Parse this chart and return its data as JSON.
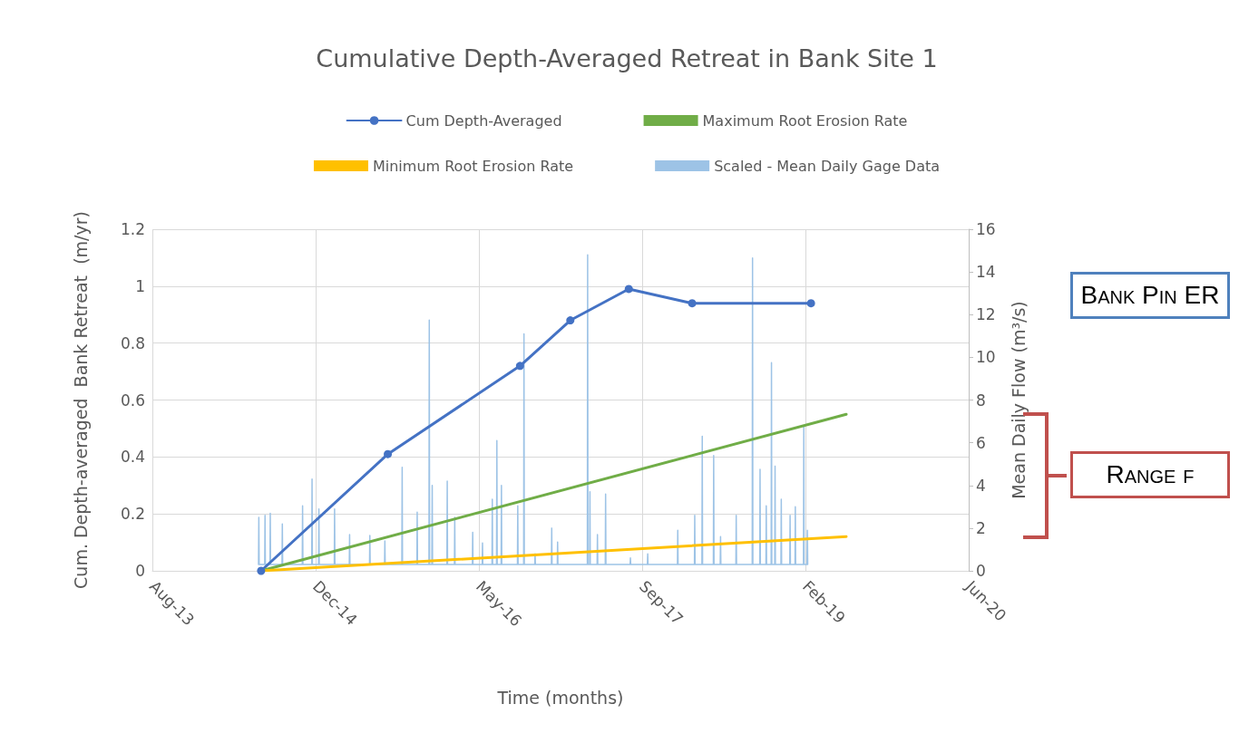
{
  "chart_data": {
    "type": "line",
    "title": "Cumulative Depth-Averaged Retreat in Bank Site 1",
    "xlabel": "Time (months)",
    "ylabel": "Cum. Depth-averaged  Bank Retreat  (m/yr)",
    "y2label": "Mean Daily Flow (m³/s)",
    "xlim": [
      "2013-08-14",
      "2020-06-18"
    ],
    "xticks": [
      {
        "value": "2013-08-14",
        "label": "Aug-13"
      },
      {
        "value": "2014-12-27",
        "label": "Dec-14"
      },
      {
        "value": "2016-05-10",
        "label": "May-16"
      },
      {
        "value": "2017-09-22",
        "label": "Sep-17"
      },
      {
        "value": "2019-02-04",
        "label": "Feb-19"
      },
      {
        "value": "2020-06-18",
        "label": "Jun-20"
      }
    ],
    "ylim": [
      0,
      1.2
    ],
    "yticks": [
      0,
      0.2,
      0.4,
      0.6,
      0.8,
      1,
      1.2
    ],
    "y2lim": [
      0,
      16
    ],
    "y2ticks": [
      0,
      2,
      4,
      6,
      8,
      10,
      12,
      14,
      16
    ],
    "grid": true,
    "legend": "top",
    "annotations": [
      "Bank Pin ER",
      "Range f"
    ],
    "series": [
      {
        "name": "Cum Depth-Averaged",
        "color": "#4472c4",
        "marker": "circle",
        "x": [
          "2014-07-13",
          "2015-08-05",
          "2016-09-13",
          "2017-02-14",
          "2017-08-12",
          "2018-02-22",
          "2019-02-21"
        ],
        "values": [
          0,
          0.41,
          0.72,
          0.88,
          0.99,
          0.94,
          0.94
        ]
      },
      {
        "name": "Maximum Root Erosion Rate",
        "color": "#70ad47",
        "marker": "none",
        "x": [
          "2014-07-13",
          "2019-06-09"
        ],
        "values": [
          0,
          0.55
        ]
      },
      {
        "name": "Minimum Root Erosion Rate",
        "color": "#ffc000",
        "marker": "none",
        "x": [
          "2014-07-13",
          "2019-06-09"
        ],
        "values": [
          0,
          0.12
        ]
      },
      {
        "name": "Scaled - Mean Daily Gage Data",
        "color": "#9dc3e6",
        "marker": "none",
        "axis": "y2",
        "x": [
          "2014-07-05",
          "2014-07-06",
          "2014-07-07",
          "2014-07-24",
          "2014-07-25",
          "2014-07-26",
          "2014-08-09",
          "2014-08-10",
          "2014-08-11",
          "2014-09-15",
          "2014-09-16",
          "2014-09-17",
          "2014-11-16",
          "2014-11-17",
          "2014-11-18",
          "2014-12-15",
          "2014-12-16",
          "2014-12-17",
          "2015-01-05",
          "2015-01-06",
          "2015-01-07",
          "2015-02-22",
          "2015-02-23",
          "2015-02-24",
          "2015-04-09",
          "2015-04-10",
          "2015-04-11",
          "2015-06-10",
          "2015-06-11",
          "2015-06-12",
          "2015-07-26",
          "2015-07-27",
          "2015-07-28",
          "2015-09-17",
          "2015-09-18",
          "2015-09-19",
          "2015-11-02",
          "2015-11-03",
          "2015-11-04",
          "2015-12-09",
          "2015-12-10",
          "2015-12-11",
          "2015-12-18",
          "2015-12-19",
          "2015-12-20",
          "2016-02-02",
          "2016-02-03",
          "2016-02-04",
          "2016-02-25",
          "2016-02-26",
          "2016-02-27",
          "2016-04-20",
          "2016-04-21",
          "2016-04-22",
          "2016-05-20",
          "2016-05-21",
          "2016-05-22",
          "2016-06-19",
          "2016-06-20",
          "2016-06-21",
          "2016-07-03",
          "2016-07-04",
          "2016-07-05",
          "2016-07-17",
          "2016-07-18",
          "2016-07-19",
          "2016-09-05",
          "2016-09-06",
          "2016-09-07",
          "2016-09-24",
          "2016-09-25",
          "2016-09-26",
          "2016-10-28",
          "2016-10-29",
          "2016-10-30",
          "2016-12-18",
          "2016-12-19",
          "2016-12-20",
          "2017-01-05",
          "2017-01-06",
          "2017-01-07",
          "2017-04-07",
          "2017-04-08",
          "2017-04-09",
          "2017-04-14",
          "2017-04-15",
          "2017-04-16",
          "2017-05-07",
          "2017-05-08",
          "2017-05-09",
          "2017-06-01",
          "2017-06-02",
          "2017-06-03",
          "2017-08-16",
          "2017-08-17",
          "2017-08-18",
          "2017-10-08",
          "2017-10-09",
          "2017-10-10",
          "2018-01-08",
          "2018-01-09",
          "2018-01-10",
          "2018-03-01",
          "2018-03-02",
          "2018-03-03",
          "2018-03-24",
          "2018-03-25",
          "2018-03-26",
          "2018-04-28",
          "2018-04-29",
          "2018-04-30",
          "2018-05-19",
          "2018-05-20",
          "2018-05-21",
          "2018-07-06",
          "2018-07-07",
          "2018-07-08",
          "2018-08-25",
          "2018-08-26",
          "2018-08-27",
          "2018-09-17",
          "2018-09-18",
          "2018-09-19",
          "2018-10-06",
          "2018-10-07",
          "2018-10-08",
          "2018-10-22",
          "2018-10-23",
          "2018-10-24",
          "2018-11-02",
          "2018-11-03",
          "2018-11-04",
          "2018-11-21",
          "2018-11-22",
          "2018-11-23",
          "2018-12-18",
          "2018-12-19",
          "2018-12-20",
          "2019-01-03",
          "2019-01-04",
          "2019-01-05",
          "2019-01-29",
          "2019-01-30",
          "2019-01-31",
          "2019-02-09",
          "2019-02-10",
          "2019-02-11"
        ],
        "values": [
          0.3,
          2.5,
          0.3,
          0.3,
          2.6,
          0.3,
          0.3,
          2.7,
          0.3,
          0.3,
          2.2,
          0.3,
          0.3,
          3.05,
          0.3,
          0.3,
          4.3,
          0.3,
          0.3,
          2.9,
          0.3,
          0.3,
          2.9,
          0.3,
          0.3,
          1.7,
          0.3,
          0.3,
          1.65,
          0.3,
          0.3,
          1.4,
          0.3,
          0.3,
          4.85,
          0.3,
          0.3,
          2.75,
          0.3,
          0.3,
          11.75,
          0.3,
          0.3,
          4,
          0.3,
          0.3,
          4.2,
          0.3,
          0.3,
          2.5,
          0.3,
          0.3,
          1.8,
          0.3,
          0.3,
          1.3,
          0.3,
          0.3,
          3.35,
          0.3,
          0.3,
          6.1,
          0.3,
          0.3,
          4,
          0.3,
          0.3,
          3.05,
          0.3,
          0.3,
          11.1,
          0.3,
          0.3,
          0.8,
          0.3,
          0.3,
          2,
          0.3,
          0.3,
          1.35,
          0.3,
          0.3,
          14.8,
          0.3,
          0.3,
          3.7,
          0.3,
          0.3,
          1.7,
          0.3,
          0.3,
          3.6,
          0.3,
          0.3,
          0.6,
          0.3,
          0.3,
          0.8,
          0.3,
          0.3,
          1.9,
          0.3,
          0.3,
          2.6,
          0.3,
          0.3,
          6.3,
          0.3,
          0.3,
          5.4,
          0.3,
          0.3,
          1.6,
          0.3,
          0.3,
          2.6,
          0.3,
          0.3,
          14.65,
          0.3,
          0.3,
          4.75,
          0.3,
          0.3,
          3.05,
          0.3,
          0.3,
          9.75,
          0.3,
          0.3,
          4.9,
          0.3,
          0.3,
          3.35,
          0.3,
          0.3,
          2.6,
          0.3,
          0.3,
          3,
          0.3,
          0.3,
          6.75,
          0.3,
          0.3,
          1.9,
          0.3
        ]
      }
    ]
  }
}
